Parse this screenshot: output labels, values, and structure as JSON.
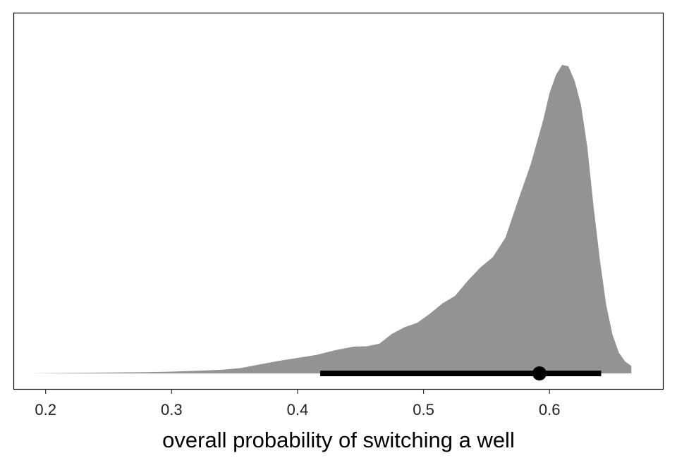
{
  "chart_data": {
    "type": "area",
    "title": "",
    "xlabel": "overall probability of switching a well",
    "ylabel": "",
    "xlim": [
      0.175,
      0.69
    ],
    "ylim": [
      0,
      1.1
    ],
    "x_ticks": [
      0.2,
      0.3,
      0.4,
      0.5,
      0.6
    ],
    "x_tick_labels": [
      "0.2",
      "0.3",
      "0.4",
      "0.5",
      "0.6"
    ],
    "grid": false,
    "legend": "none",
    "colors": {
      "density": "#939393",
      "interval": "#000000",
      "frame": "#000000"
    },
    "density": {
      "x": [
        0.188,
        0.22,
        0.25,
        0.28,
        0.3,
        0.32,
        0.34,
        0.355,
        0.37,
        0.385,
        0.4,
        0.415,
        0.43,
        0.445,
        0.455,
        0.465,
        0.475,
        0.485,
        0.495,
        0.505,
        0.515,
        0.525,
        0.535,
        0.545,
        0.555,
        0.565,
        0.575,
        0.585,
        0.595,
        0.6,
        0.605,
        0.61,
        0.615,
        0.62,
        0.625,
        0.63,
        0.635,
        0.64,
        0.645,
        0.65,
        0.655,
        0.66,
        0.665
      ],
      "y": [
        0.0,
        0.002,
        0.003,
        0.004,
        0.006,
        0.009,
        0.012,
        0.018,
        0.03,
        0.042,
        0.052,
        0.062,
        0.078,
        0.09,
        0.091,
        0.1,
        0.133,
        0.155,
        0.17,
        0.2,
        0.235,
        0.26,
        0.31,
        0.355,
        0.39,
        0.455,
        0.58,
        0.7,
        0.85,
        0.94,
        1.0,
        1.035,
        1.03,
        0.98,
        0.9,
        0.76,
        0.56,
        0.38,
        0.23,
        0.13,
        0.07,
        0.04,
        0.025
      ]
    },
    "interval": {
      "low": 0.418,
      "high": 0.641,
      "point": 0.592
    }
  }
}
